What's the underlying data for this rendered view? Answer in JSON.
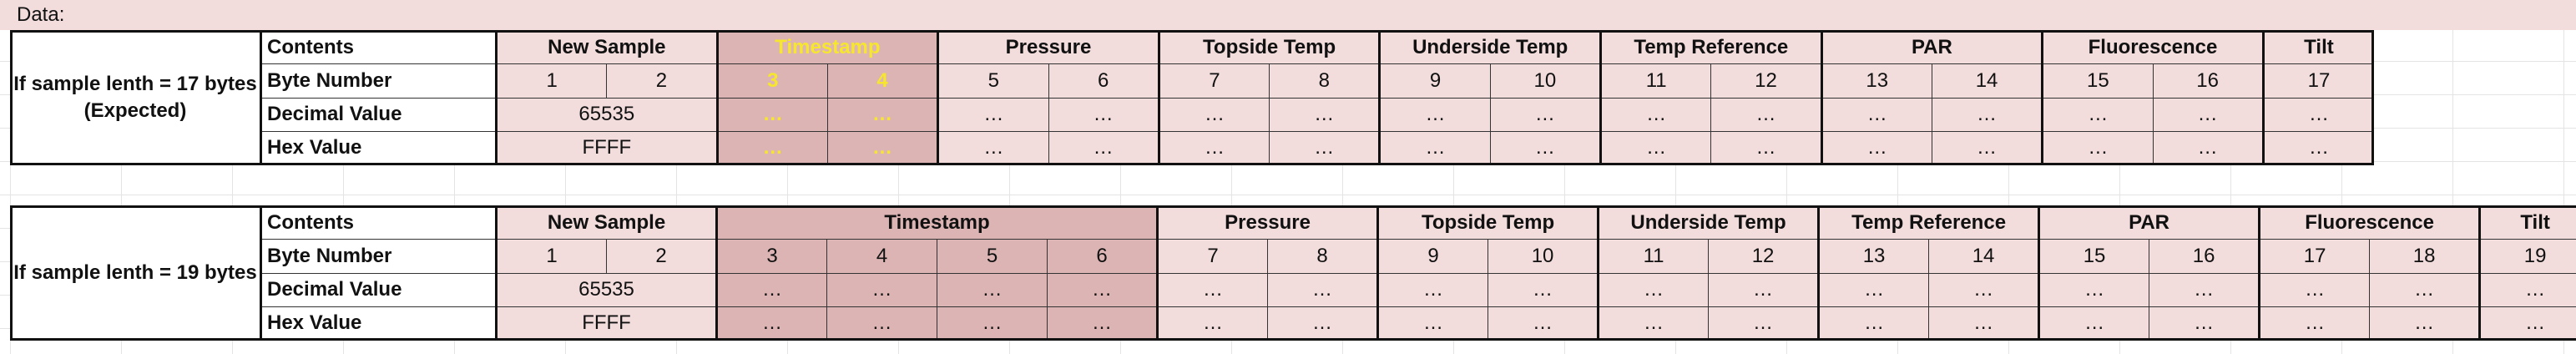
{
  "sheet": {
    "data_label": "Data:"
  },
  "colors": {
    "cell_pink": "#f2dcdc",
    "timestamp_rose": "#dcb4b4",
    "highlight_yellow": "#f7e62e"
  },
  "row_labels": {
    "contents": "Contents",
    "byte_number": "Byte Number",
    "decimal_value": "Decimal Value",
    "hex_value": "Hex Value"
  },
  "table17": {
    "case_label": "If sample lenth = 17 bytes (Expected)",
    "groups": [
      {
        "name": "New Sample",
        "bytes": [
          "1",
          "2"
        ],
        "decimal": "65535",
        "hex": "FFFF",
        "merged": true
      },
      {
        "name": "Timestamp",
        "bytes": [
          "3",
          "4"
        ],
        "decimal": [
          "…",
          "…"
        ],
        "hex": [
          "…",
          "…"
        ]
      },
      {
        "name": "Pressure",
        "bytes": [
          "5",
          "6"
        ],
        "decimal": [
          "…",
          "…"
        ],
        "hex": [
          "…",
          "…"
        ]
      },
      {
        "name": "Topside Temp",
        "bytes": [
          "7",
          "8"
        ],
        "decimal": [
          "…",
          "…"
        ],
        "hex": [
          "…",
          "…"
        ]
      },
      {
        "name": "Underside Temp",
        "bytes": [
          "9",
          "10"
        ],
        "decimal": [
          "…",
          "…"
        ],
        "hex": [
          "…",
          "…"
        ]
      },
      {
        "name": "Temp Reference",
        "bytes": [
          "11",
          "12"
        ],
        "decimal": [
          "…",
          "…"
        ],
        "hex": [
          "…",
          "…"
        ]
      },
      {
        "name": "PAR",
        "bytes": [
          "13",
          "14"
        ],
        "decimal": [
          "…",
          "…"
        ],
        "hex": [
          "…",
          "…"
        ]
      },
      {
        "name": "Fluorescence",
        "bytes": [
          "15",
          "16"
        ],
        "decimal": [
          "…",
          "…"
        ],
        "hex": [
          "…",
          "…"
        ]
      },
      {
        "name": "Tilt",
        "bytes": [
          "17"
        ],
        "decimal": [
          "…"
        ],
        "hex": [
          "…"
        ]
      }
    ]
  },
  "table19": {
    "case_label": "If sample lenth = 19 bytes",
    "groups": [
      {
        "name": "New Sample",
        "bytes": [
          "1",
          "2"
        ],
        "decimal": "65535",
        "hex": "FFFF",
        "merged": true
      },
      {
        "name": "Timestamp",
        "bytes": [
          "3",
          "4",
          "5",
          "6"
        ],
        "decimal": [
          "…",
          "…",
          "…",
          "…"
        ],
        "hex": [
          "…",
          "…",
          "…",
          "…"
        ]
      },
      {
        "name": "Pressure",
        "bytes": [
          "7",
          "8"
        ],
        "decimal": [
          "…",
          "…"
        ],
        "hex": [
          "…",
          "…"
        ]
      },
      {
        "name": "Topside Temp",
        "bytes": [
          "9",
          "10"
        ],
        "decimal": [
          "…",
          "…"
        ],
        "hex": [
          "…",
          "…"
        ]
      },
      {
        "name": "Underside Temp",
        "bytes": [
          "11",
          "12"
        ],
        "decimal": [
          "…",
          "…"
        ],
        "hex": [
          "…",
          "…"
        ]
      },
      {
        "name": "Temp Reference",
        "bytes": [
          "13",
          "14"
        ],
        "decimal": [
          "…",
          "…"
        ],
        "hex": [
          "…",
          "…"
        ]
      },
      {
        "name": "PAR",
        "bytes": [
          "15",
          "16"
        ],
        "decimal": [
          "…",
          "…"
        ],
        "hex": [
          "…",
          "…"
        ]
      },
      {
        "name": "Fluorescence",
        "bytes": [
          "17",
          "18"
        ],
        "decimal": [
          "…",
          "…"
        ],
        "hex": [
          "…",
          "…"
        ]
      },
      {
        "name": "Tilt",
        "bytes": [
          "19"
        ],
        "decimal": [
          "…"
        ],
        "hex": [
          "…"
        ]
      }
    ]
  }
}
